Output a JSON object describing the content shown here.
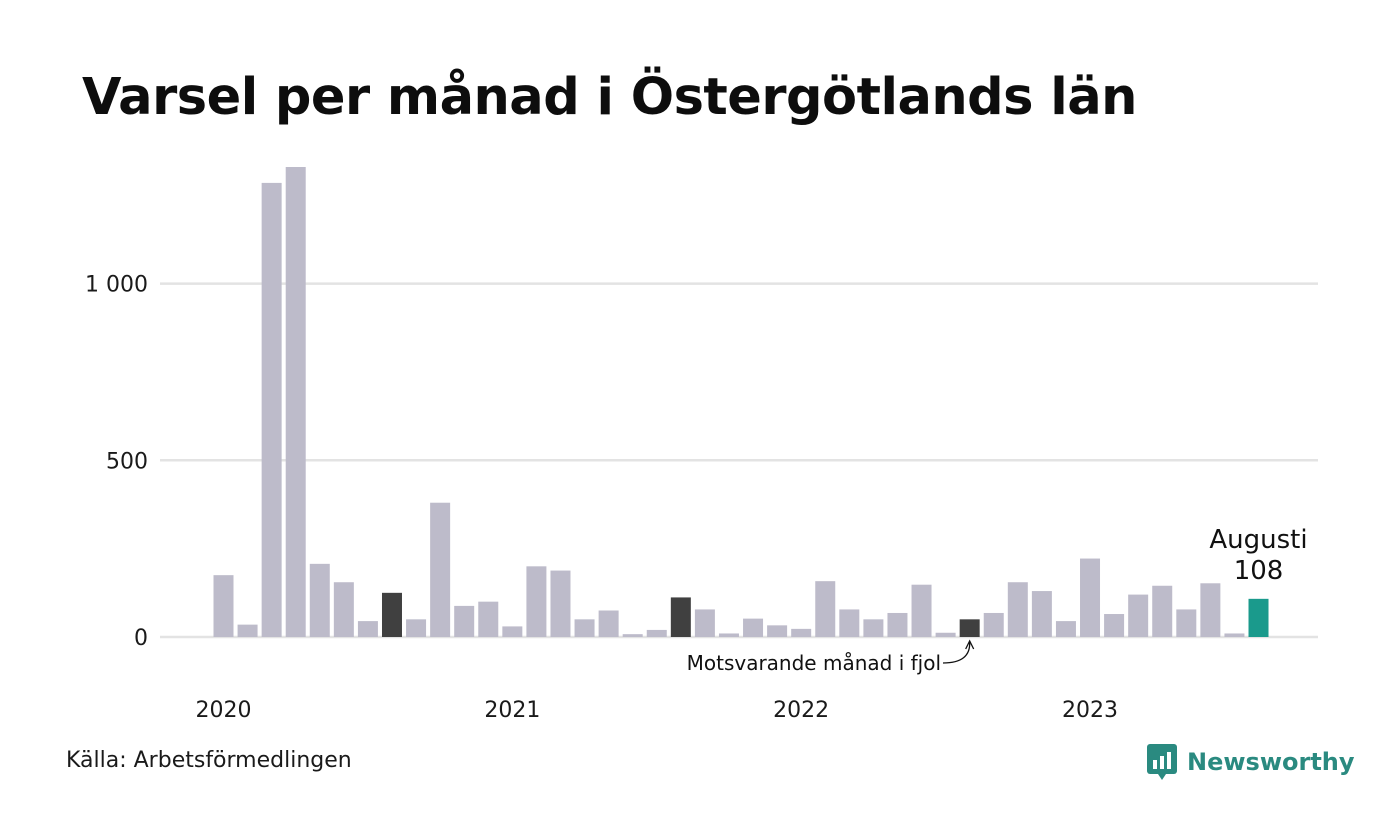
{
  "title": "Varsel per månad i Östergötlands län",
  "source": "Källa: Arbetsförmedlingen",
  "logo": {
    "text": "Newsworthy",
    "icon": "newsworthy-logo-icon",
    "color": "#2a8a80"
  },
  "colors": {
    "bar": "#bdbbca",
    "previous_year": "#404040",
    "current": "#1a9a8c",
    "grid": "#e3e3e3"
  },
  "annotations": {
    "current_month": "Augusti",
    "current_value": "108",
    "previous_year_label": "Motsvarande månad i fjol"
  },
  "chart_data": {
    "type": "bar",
    "title": "Varsel per månad i Östergötlands län",
    "xlabel": "",
    "ylabel": "",
    "ylim": [
      0,
      1330
    ],
    "yticks": [
      0,
      500,
      1000
    ],
    "ytick_labels": [
      "0",
      "500",
      "1 000"
    ],
    "xtick_labels": [
      {
        "label": "2020",
        "index": 0
      },
      {
        "label": "2021",
        "index": 12
      },
      {
        "label": "2022",
        "index": 24
      },
      {
        "label": "2023",
        "index": 36
      }
    ],
    "grid": true,
    "series": [
      {
        "values": [
          175,
          35,
          1285,
          1330,
          207,
          155,
          45,
          125,
          50,
          380,
          88,
          100,
          30,
          200,
          188,
          50,
          75,
          8,
          20,
          112,
          78,
          10,
          52,
          33,
          23,
          158,
          78,
          50,
          68,
          148,
          12,
          50,
          68,
          155,
          130,
          45,
          222,
          65,
          120,
          145,
          78,
          152,
          10,
          108
        ],
        "highlights": {
          "previous_year": [
            7,
            19,
            31
          ],
          "current": 43
        }
      }
    ]
  }
}
